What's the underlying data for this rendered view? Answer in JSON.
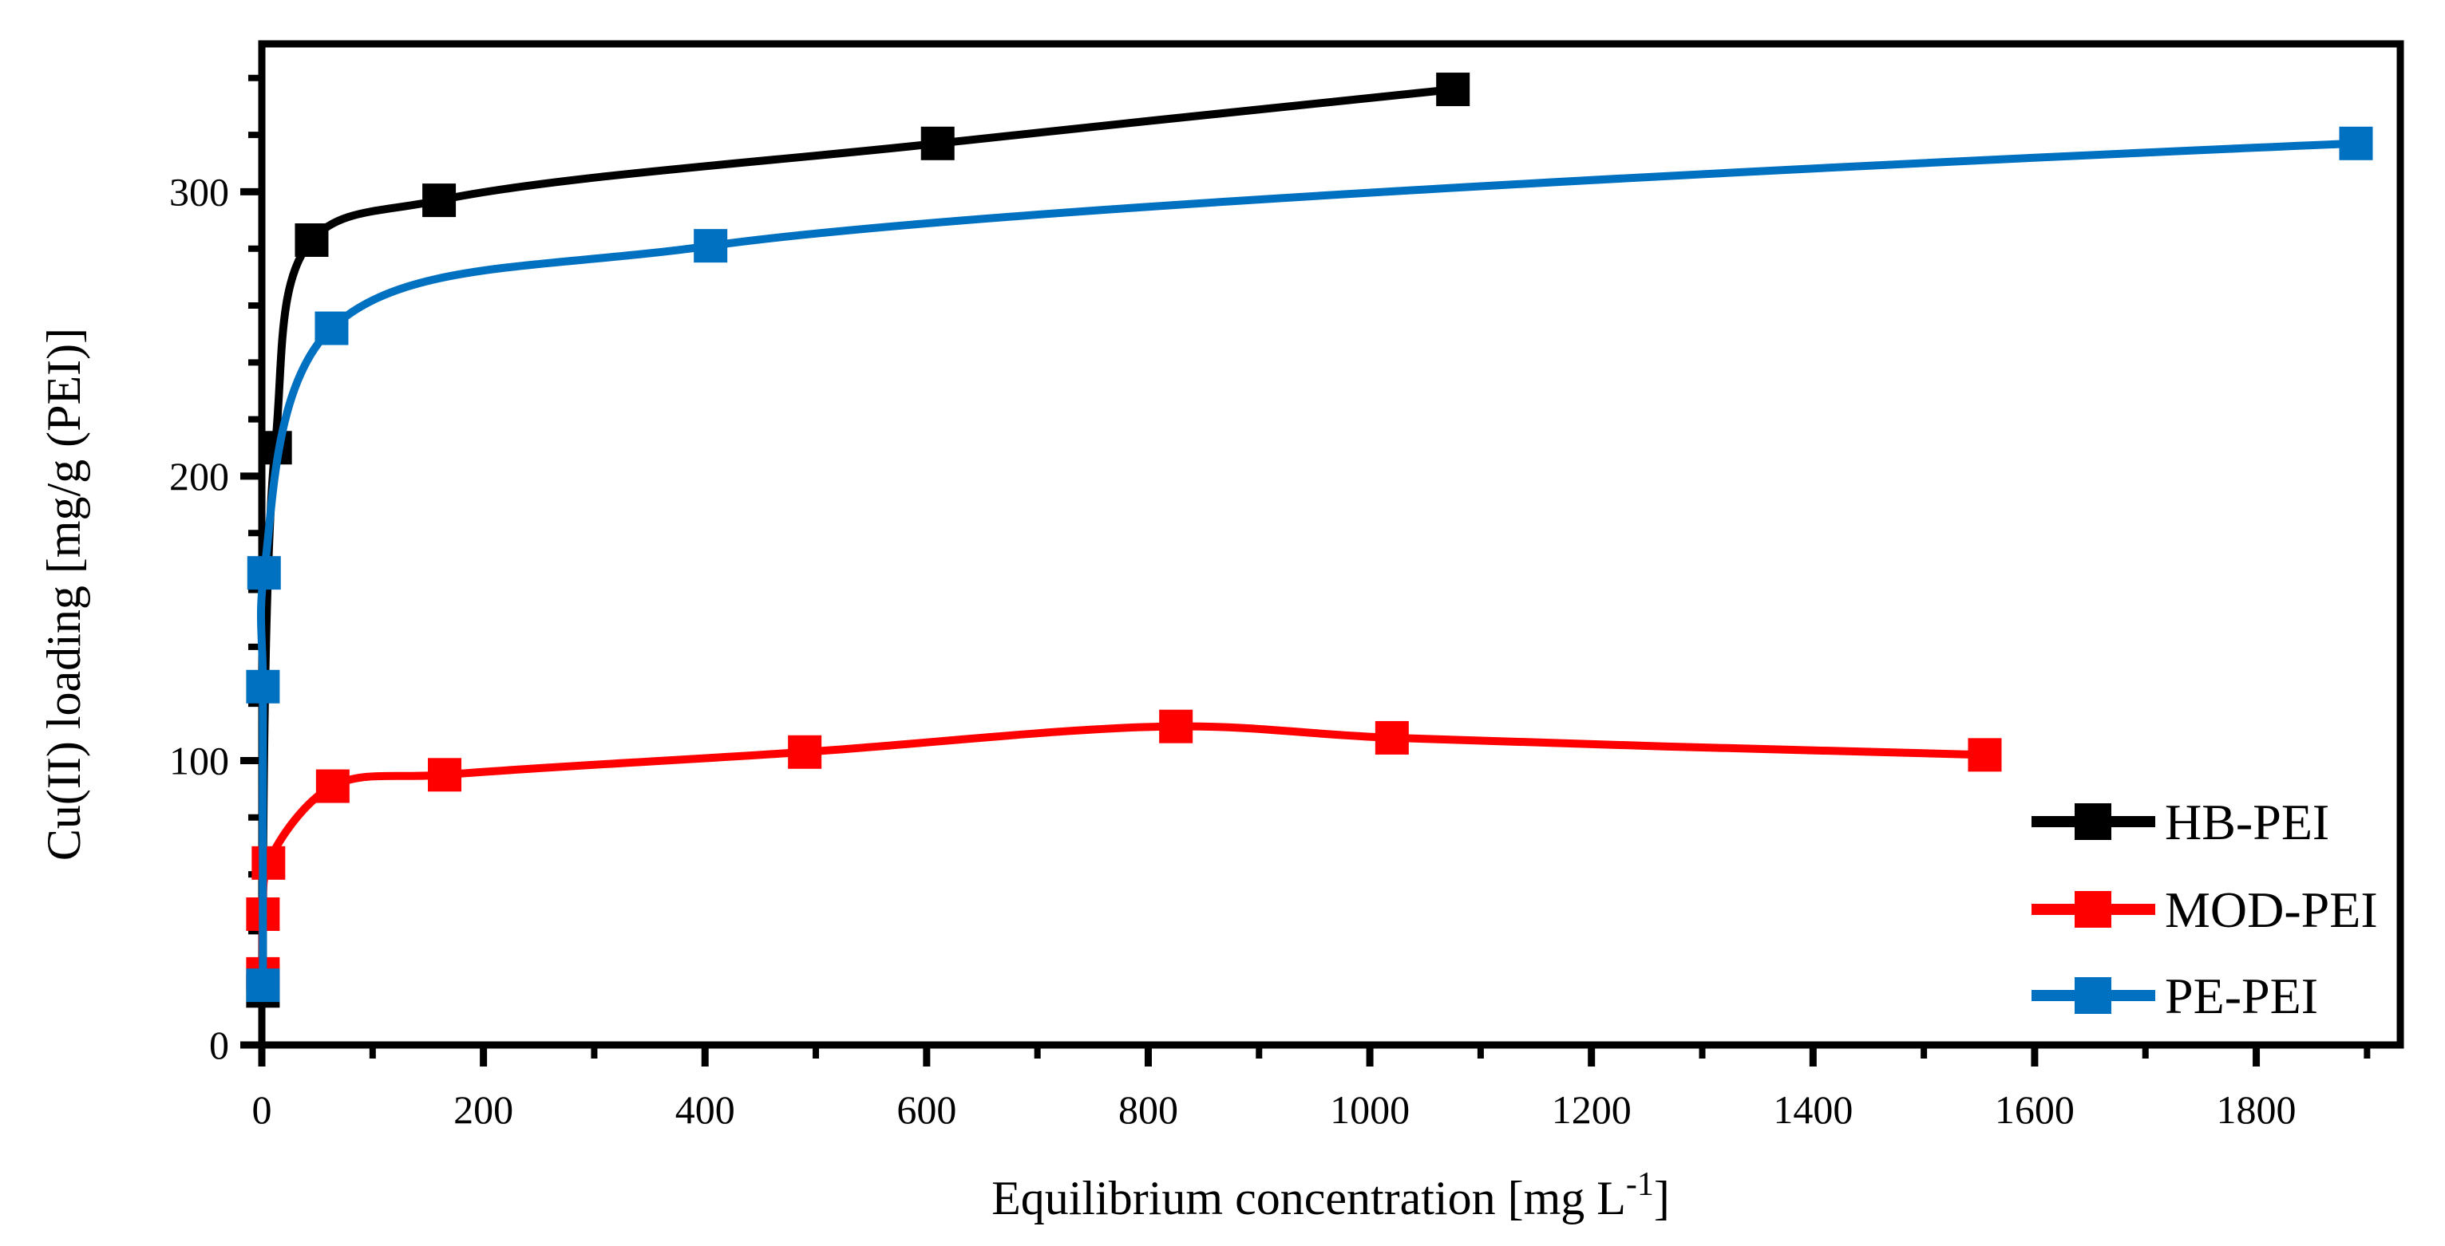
{
  "chart_data": {
    "type": "line",
    "title": "",
    "xlabel": {
      "prefix": "Equilibrium concentration [mg L",
      "sup": "-1",
      "suffix": "]"
    },
    "ylabel": "Cu(II) loading [mg/g (PEI)]",
    "x_axis": {
      "min": 0,
      "max": 1930,
      "major_tick_step": 200,
      "minor_tick_step": 100,
      "tick_labels": [
        0,
        200,
        400,
        600,
        800,
        1000,
        1200,
        1400,
        1600,
        1800
      ]
    },
    "y_axis": {
      "min": 0,
      "max": 352,
      "major_tick_step": 100,
      "minor_tick_step": 20,
      "tick_labels": [
        0,
        100,
        200,
        300
      ]
    },
    "grid": false,
    "axis_color": "#000000",
    "legend": {
      "position": "inside-bottom-right",
      "entries": [
        "HB-PEI",
        "MOD-PEI",
        "PE-PEI"
      ]
    },
    "series": [
      {
        "name": "HB-PEI",
        "color": "#000000",
        "marker": "square",
        "points": [
          [
            1,
            19
          ],
          [
            12,
            210
          ],
          [
            45,
            283
          ],
          [
            160,
            297
          ],
          [
            610,
            317
          ],
          [
            1075,
            336
          ]
        ]
      },
      {
        "name": "MOD-PEI",
        "color": "#FF0000",
        "marker": "square",
        "points": [
          [
            1,
            25
          ],
          [
            1,
            46
          ],
          [
            6,
            64
          ],
          [
            64,
            91
          ],
          [
            165,
            95
          ],
          [
            490,
            103
          ],
          [
            825,
            112
          ],
          [
            1020,
            108
          ],
          [
            1555,
            102
          ]
        ]
      },
      {
        "name": "PE-PEI",
        "color": "#0070C0",
        "marker": "square",
        "points": [
          [
            1,
            21
          ],
          [
            1,
            126
          ],
          [
            2,
            166
          ],
          [
            63,
            252
          ],
          [
            405,
            281
          ],
          [
            1890,
            317
          ]
        ]
      }
    ]
  }
}
